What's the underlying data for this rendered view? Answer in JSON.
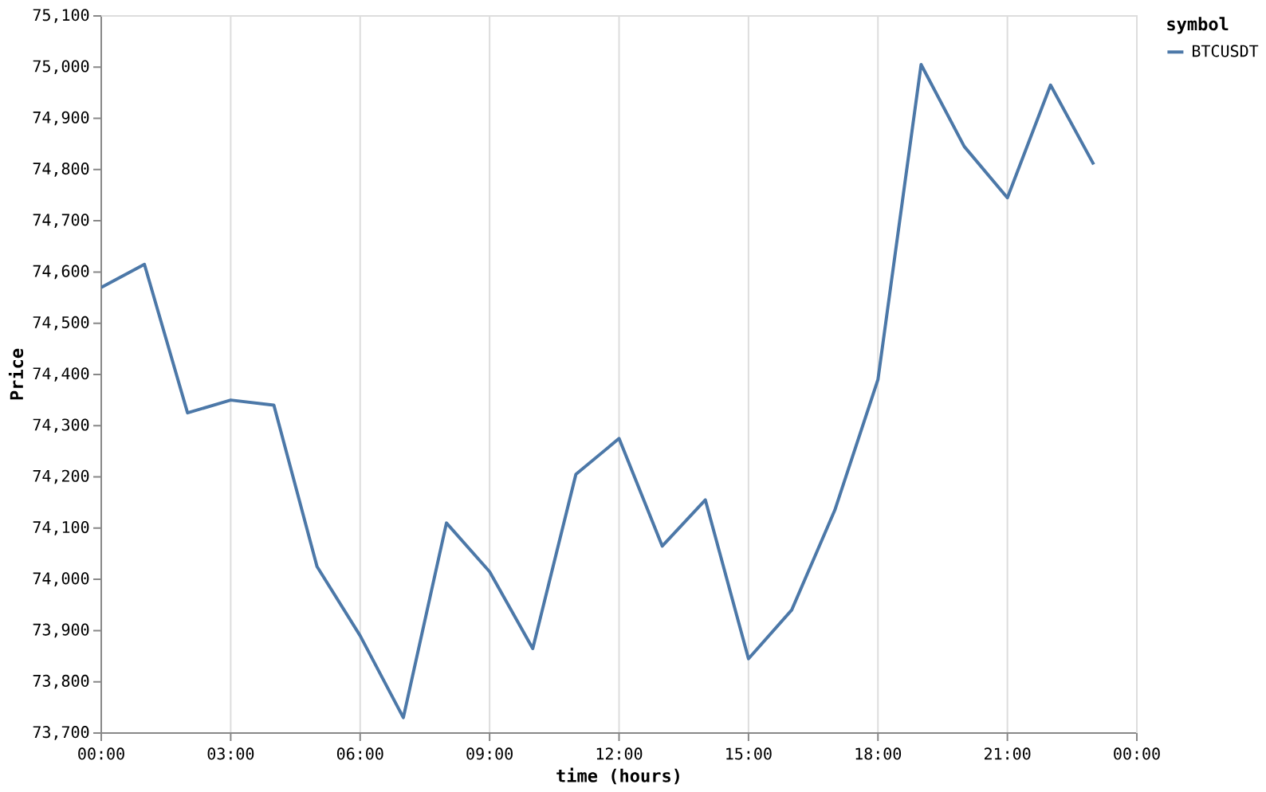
{
  "chart_data": {
    "type": "line",
    "xlabel": "time (hours)",
    "ylabel": "Price",
    "legend_title": "symbol",
    "legend": "top right",
    "grid": "x",
    "line_style": "solid",
    "x": [
      0,
      1,
      2,
      3,
      4,
      5,
      6,
      7,
      8,
      9,
      10,
      11,
      12,
      13,
      14,
      15,
      16,
      17,
      18,
      19,
      20,
      21,
      22,
      23
    ],
    "series": [
      {
        "name": "BTCUSDT",
        "color": "#4c78a8",
        "values": [
          74570,
          74615,
          74325,
          74350,
          74340,
          74025,
          73890,
          73730,
          74110,
          74015,
          73865,
          74205,
          74275,
          74065,
          74155,
          73845,
          73940,
          74135,
          74390,
          75005,
          74845,
          74745,
          74965,
          74810
        ]
      }
    ],
    "xlim": [
      0,
      24
    ],
    "xticks": [
      {
        "value": 0,
        "label": "00:00"
      },
      {
        "value": 3,
        "label": "03:00"
      },
      {
        "value": 6,
        "label": "06:00"
      },
      {
        "value": 9,
        "label": "09:00"
      },
      {
        "value": 12,
        "label": "12:00"
      },
      {
        "value": 15,
        "label": "15:00"
      },
      {
        "value": 18,
        "label": "18:00"
      },
      {
        "value": 21,
        "label": "21:00"
      },
      {
        "value": 24,
        "label": "00:00"
      }
    ],
    "ylim": [
      73700,
      75100
    ],
    "yticks": [
      {
        "value": 73700,
        "label": "73,700"
      },
      {
        "value": 73800,
        "label": "73,800"
      },
      {
        "value": 73900,
        "label": "73,900"
      },
      {
        "value": 74000,
        "label": "74,000"
      },
      {
        "value": 74100,
        "label": "74,100"
      },
      {
        "value": 74200,
        "label": "74,200"
      },
      {
        "value": 74300,
        "label": "74,300"
      },
      {
        "value": 74400,
        "label": "74,400"
      },
      {
        "value": 74500,
        "label": "74,500"
      },
      {
        "value": 74600,
        "label": "74,600"
      },
      {
        "value": 74700,
        "label": "74,700"
      },
      {
        "value": 74800,
        "label": "74,800"
      },
      {
        "value": 74900,
        "label": "74,900"
      },
      {
        "value": 75000,
        "label": "75,000"
      },
      {
        "value": 75100,
        "label": "75,100"
      }
    ]
  }
}
